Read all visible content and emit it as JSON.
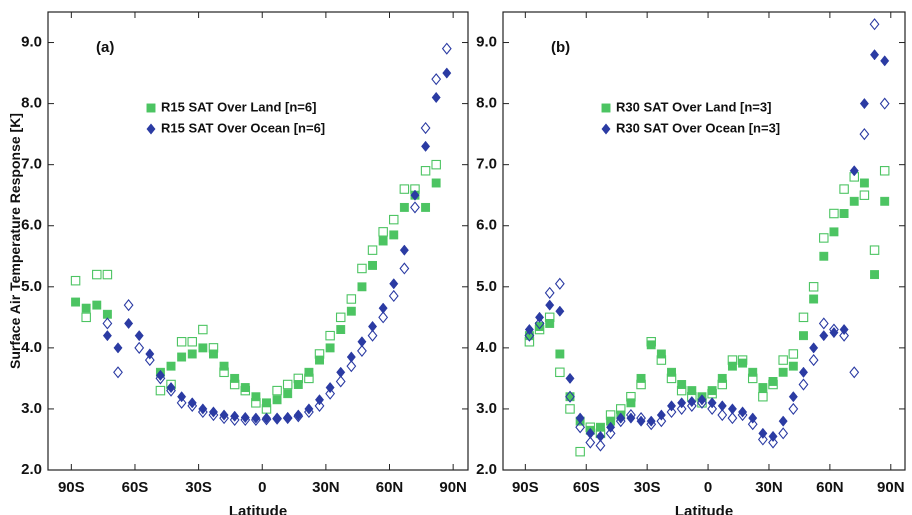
{
  "chart_data": [
    {
      "type": "scatter",
      "annotation": "(a)",
      "x_label": "Latitude",
      "y_label": "Surface Air Temperature Response [K]",
      "xlim": [
        -101,
        97
      ],
      "ylim": [
        2,
        9.5
      ],
      "xticks": [
        {
          "value": -90,
          "label": "90S"
        },
        {
          "value": -60,
          "label": "60S"
        },
        {
          "value": -30,
          "label": "30S"
        },
        0,
        {
          "value": 30,
          "label": "30N"
        },
        {
          "value": 60,
          "label": "60N"
        },
        {
          "value": 90,
          "label": "90N"
        }
      ],
      "yticks": [
        {
          "value": 2,
          "label": "2.0"
        },
        {
          "value": 3,
          "label": "3.0"
        },
        {
          "value": 4,
          "label": "4.0"
        },
        {
          "value": 5,
          "label": "5.0"
        },
        {
          "value": 6,
          "label": "6.0"
        },
        {
          "value": 7,
          "label": "7.0"
        },
        {
          "value": 8,
          "label": "8.0"
        },
        {
          "value": 9,
          "label": "9.0"
        }
      ],
      "series": [
        {
          "name": "R15 SAT Over Land [n=6]",
          "color": "#4cc462",
          "marker": "square",
          "x": [
            -88,
            -83,
            -78,
            -73,
            -48,
            -43,
            -38,
            -33,
            -28,
            -23,
            -18,
            -13,
            -8,
            -3,
            2,
            7,
            12,
            17,
            22,
            27,
            32,
            37,
            42,
            47,
            52,
            57,
            62,
            67,
            72,
            77,
            82
          ],
          "values": [
            4.75,
            4.65,
            4.7,
            4.55,
            3.6,
            3.7,
            3.85,
            3.9,
            4.0,
            3.9,
            3.7,
            3.5,
            3.35,
            3.2,
            3.1,
            3.15,
            3.25,
            3.4,
            3.6,
            3.8,
            4.0,
            4.3,
            4.6,
            5.0,
            5.35,
            5.75,
            5.85,
            6.3,
            6.5,
            6.3,
            6.7
          ],
          "open_values": [
            5.1,
            4.5,
            5.2,
            5.2,
            3.3,
            3.4,
            4.1,
            4.1,
            4.3,
            4.0,
            3.6,
            3.4,
            3.3,
            3.1,
            3.0,
            3.3,
            3.4,
            3.5,
            3.5,
            3.9,
            4.2,
            4.5,
            4.8,
            5.3,
            5.6,
            5.9,
            6.1,
            6.6,
            6.6,
            6.9,
            7.0
          ]
        },
        {
          "name": "R15 SAT Over Ocean [n=6]",
          "color": "#2b3ba3",
          "marker": "diamond",
          "x": [
            -73,
            -68,
            -63,
            -58,
            -53,
            -48,
            -43,
            -38,
            -33,
            -28,
            -23,
            -18,
            -13,
            -8,
            -3,
            2,
            7,
            12,
            17,
            22,
            27,
            32,
            37,
            42,
            47,
            52,
            57,
            62,
            67,
            72,
            77,
            82,
            87
          ],
          "values": [
            4.2,
            4.0,
            4.4,
            4.2,
            3.9,
            3.55,
            3.35,
            3.2,
            3.1,
            3.0,
            2.95,
            2.9,
            2.88,
            2.86,
            2.85,
            2.85,
            2.85,
            2.86,
            2.9,
            3.0,
            3.15,
            3.35,
            3.6,
            3.85,
            4.1,
            4.35,
            4.65,
            5.05,
            5.6,
            6.5,
            7.3,
            8.1,
            8.5
          ],
          "open_values": [
            4.4,
            3.6,
            4.7,
            4.0,
            3.8,
            3.5,
            3.3,
            3.1,
            3.05,
            2.95,
            2.9,
            2.85,
            2.82,
            2.82,
            2.82,
            2.83,
            2.84,
            2.85,
            2.88,
            2.95,
            3.05,
            3.25,
            3.45,
            3.7,
            3.95,
            4.2,
            4.5,
            4.85,
            5.3,
            6.3,
            7.6,
            8.4,
            8.9
          ]
        }
      ]
    },
    {
      "type": "scatter",
      "annotation": "(b)",
      "x_label": "Latitude",
      "xlim": [
        -101,
        97
      ],
      "ylim": [
        2,
        9.5
      ],
      "xticks": [
        {
          "value": -90,
          "label": "90S"
        },
        {
          "value": -60,
          "label": "60S"
        },
        {
          "value": -30,
          "label": "30S"
        },
        0,
        {
          "value": 30,
          "label": "30N"
        },
        {
          "value": 60,
          "label": "60N"
        },
        {
          "value": 90,
          "label": "90N"
        }
      ],
      "yticks": [
        {
          "value": 2,
          "label": "2.0"
        },
        {
          "value": 3,
          "label": "3.0"
        },
        {
          "value": 4,
          "label": "4.0"
        },
        {
          "value": 5,
          "label": "5.0"
        },
        {
          "value": 6,
          "label": "6.0"
        },
        {
          "value": 7,
          "label": "7.0"
        },
        {
          "value": 8,
          "label": "8.0"
        },
        {
          "value": 9,
          "label": "9.0"
        }
      ],
      "series": [
        {
          "name": "R30 SAT Over Land [n=3]",
          "color": "#4cc462",
          "marker": "square",
          "x": [
            -88,
            -83,
            -78,
            -73,
            -68,
            -63,
            -58,
            -53,
            -48,
            -43,
            -38,
            -33,
            -28,
            -23,
            -18,
            -13,
            -8,
            -3,
            2,
            7,
            12,
            17,
            22,
            27,
            32,
            37,
            42,
            47,
            52,
            57,
            62,
            67,
            72,
            77,
            82,
            87
          ],
          "values": [
            4.2,
            4.35,
            4.4,
            3.9,
            3.2,
            2.8,
            2.65,
            2.7,
            2.8,
            2.9,
            3.1,
            3.5,
            4.05,
            3.9,
            3.6,
            3.4,
            3.3,
            3.2,
            3.3,
            3.5,
            3.7,
            3.75,
            3.6,
            3.35,
            3.45,
            3.6,
            3.7,
            4.2,
            4.8,
            5.5,
            5.9,
            6.2,
            6.4,
            6.7,
            5.2,
            6.4
          ],
          "open_values": [
            4.1,
            4.3,
            4.5,
            3.6,
            3.0,
            2.3,
            2.7,
            2.6,
            2.9,
            3.0,
            3.2,
            3.4,
            4.1,
            3.8,
            3.5,
            3.3,
            3.2,
            3.1,
            3.25,
            3.4,
            3.8,
            3.8,
            3.5,
            3.2,
            3.4,
            3.8,
            3.9,
            4.5,
            5.0,
            5.8,
            6.2,
            6.6,
            6.8,
            6.5,
            5.6,
            6.9
          ]
        },
        {
          "name": "R30 SAT Over Ocean [n=3]",
          "color": "#2b3ba3",
          "marker": "diamond",
          "x": [
            -88,
            -83,
            -78,
            -73,
            -68,
            -63,
            -58,
            -53,
            -48,
            -43,
            -38,
            -33,
            -28,
            -23,
            -18,
            -13,
            -8,
            -3,
            2,
            7,
            12,
            17,
            22,
            27,
            32,
            37,
            42,
            47,
            52,
            57,
            62,
            67,
            72,
            77,
            82,
            87
          ],
          "values": [
            4.3,
            4.5,
            4.7,
            4.6,
            3.5,
            2.85,
            2.6,
            2.55,
            2.7,
            2.85,
            2.85,
            2.8,
            2.8,
            2.9,
            3.05,
            3.1,
            3.12,
            3.15,
            3.1,
            3.05,
            3.0,
            2.95,
            2.85,
            2.6,
            2.55,
            2.8,
            3.2,
            3.6,
            4.0,
            4.2,
            4.25,
            4.3,
            6.9,
            8.0,
            8.8,
            8.7
          ],
          "open_values": [
            4.2,
            4.4,
            4.9,
            5.05,
            3.2,
            2.7,
            2.45,
            2.4,
            2.6,
            2.8,
            2.9,
            2.85,
            2.75,
            2.8,
            2.95,
            3.0,
            3.05,
            3.1,
            3.0,
            2.9,
            2.85,
            2.9,
            2.75,
            2.5,
            2.45,
            2.6,
            3.0,
            3.4,
            3.8,
            4.4,
            4.3,
            4.2,
            3.6,
            7.5,
            9.3,
            8.0
          ]
        }
      ]
    }
  ]
}
